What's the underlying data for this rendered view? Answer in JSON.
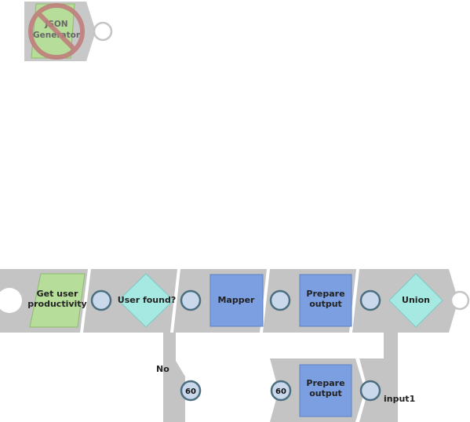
{
  "snaps": {
    "json_generator": {
      "label_line1": "JSON",
      "label_line2": "Generator",
      "status": "disabled"
    },
    "get_user_productivity": {
      "label_line1": "Get user",
      "label_line2": "productivity"
    },
    "user_found": {
      "label": "User found?"
    },
    "mapper": {
      "label": "Mapper"
    },
    "prepare_output_top": {
      "label_line1": "Prepare",
      "label_line2": "output"
    },
    "union": {
      "label": "Union"
    },
    "prepare_output_bottom": {
      "label_line1": "Prepare",
      "label_line2": "output"
    }
  },
  "branches": {
    "no_label": "No"
  },
  "connectors": {
    "link_left": "60",
    "link_right": "60",
    "union_input": "input1"
  },
  "colors": {
    "track": "#c4c4c4",
    "read_snap": "#b7dd9a",
    "router_snap": "#a6e8e2",
    "transform_snap": "#7b9fe1",
    "port_fill": "#c9d8ea",
    "port_stroke": "#4b6f80",
    "disabled_mark": "#c07a7a"
  }
}
